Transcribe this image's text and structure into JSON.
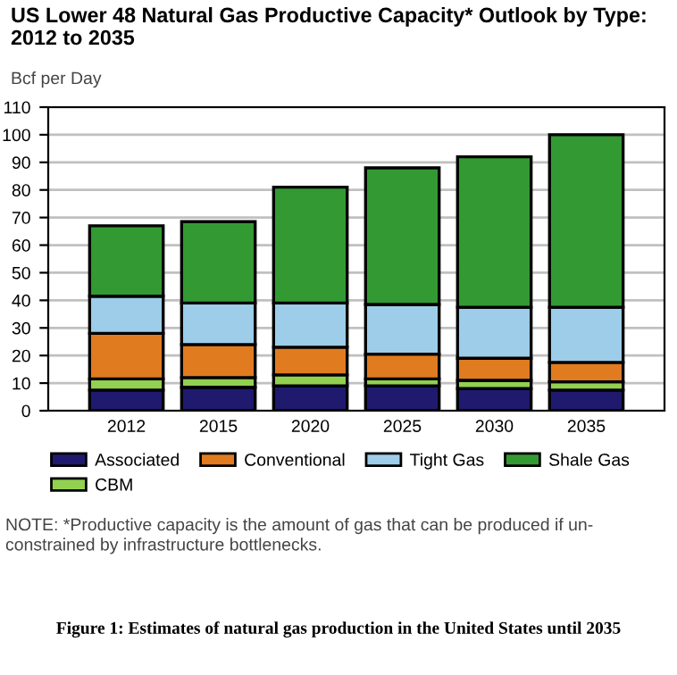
{
  "chart_data": {
    "type": "bar",
    "stacked": true,
    "title": "US Lower 48 Natural Gas Productive Capacity* Outlook by Type:\n2012 to 2035",
    "ylabel": "Bcf per Day",
    "categories": [
      "2012",
      "2015",
      "2020",
      "2025",
      "2030",
      "2035"
    ],
    "series": [
      {
        "name": "Associated",
        "color": "#1f1a6e",
        "values": [
          7.5,
          8.5,
          9,
          9,
          8,
          7.5
        ]
      },
      {
        "name": "CBM",
        "color": "#92d050",
        "values": [
          4,
          3.5,
          4,
          2.5,
          3,
          3
        ]
      },
      {
        "name": "Conventional",
        "color": "#e07b20",
        "values": [
          16.5,
          12,
          10,
          9,
          8,
          7
        ]
      },
      {
        "name": "Tight Gas",
        "color": "#9dcde8",
        "values": [
          13.5,
          15,
          16,
          18,
          18.5,
          20
        ]
      },
      {
        "name": "Shale Gas",
        "color": "#339933",
        "values": [
          25.5,
          29.5,
          42,
          49.5,
          54.5,
          62.5
        ]
      }
    ],
    "ylim": [
      0,
      110
    ],
    "yticks": [
      0,
      10,
      20,
      30,
      40,
      50,
      60,
      70,
      80,
      90,
      100,
      110
    ],
    "grid": "y",
    "legend": "bottom",
    "annotations": [
      "NOTE: *Productive capacity is the amount of gas that can be produced if un-\nconstrained by infrastructure bottlenecks.",
      "Figure 1: Estimates of natural gas production in the United States until 2035"
    ]
  }
}
